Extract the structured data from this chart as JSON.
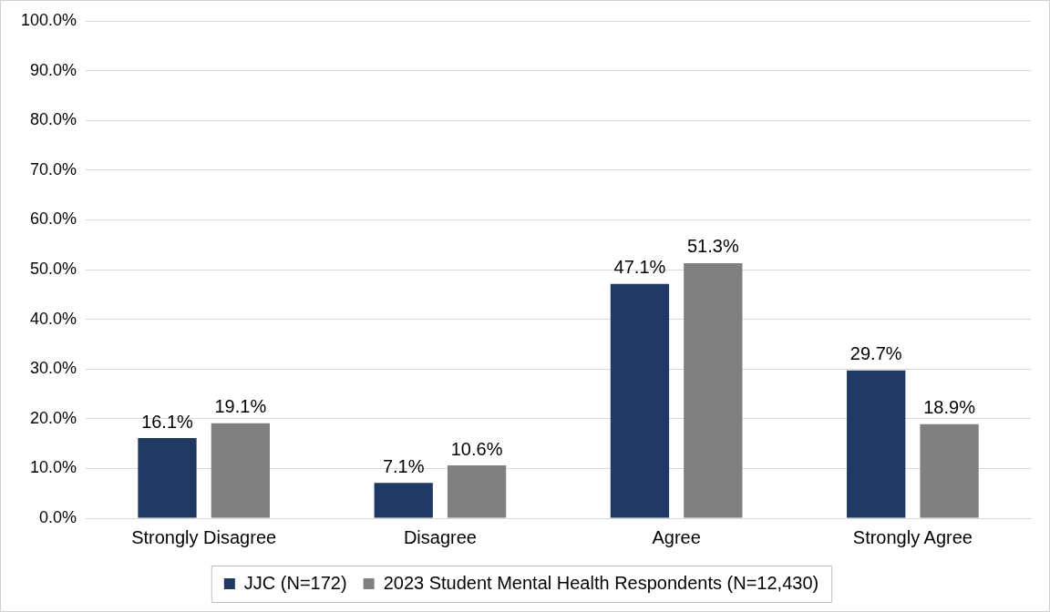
{
  "chart_data": {
    "type": "bar",
    "categories": [
      "Strongly Disagree",
      "Disagree",
      "Agree",
      "Strongly Agree"
    ],
    "series": [
      {
        "name": "JJC (N=172)",
        "color": "#1f3864",
        "values": [
          16.1,
          7.1,
          47.1,
          29.7
        ],
        "value_labels": [
          "16.1%",
          "7.1%",
          "47.1%",
          "29.7%"
        ]
      },
      {
        "name": "2023 Student Mental Health Respondents (N=12,430)",
        "color": "#808080",
        "values": [
          19.1,
          10.6,
          51.3,
          18.9
        ],
        "value_labels": [
          "19.1%",
          "10.6%",
          "51.3%",
          "18.9%"
        ]
      }
    ],
    "ylim": [
      0,
      100
    ],
    "yticks": [
      {
        "value": 0,
        "label": "0.0%"
      },
      {
        "value": 10,
        "label": "10.0%"
      },
      {
        "value": 20,
        "label": "20.0%"
      },
      {
        "value": 30,
        "label": "30.0%"
      },
      {
        "value": 40,
        "label": "40.0%"
      },
      {
        "value": 50,
        "label": "50.0%"
      },
      {
        "value": 60,
        "label": "60.0%"
      },
      {
        "value": 70,
        "label": "70.0%"
      },
      {
        "value": 80,
        "label": "80.0%"
      },
      {
        "value": 90,
        "label": "90.0%"
      },
      {
        "value": 100,
        "label": "100.0%"
      }
    ],
    "grid": "y",
    "legend": "bottom"
  }
}
